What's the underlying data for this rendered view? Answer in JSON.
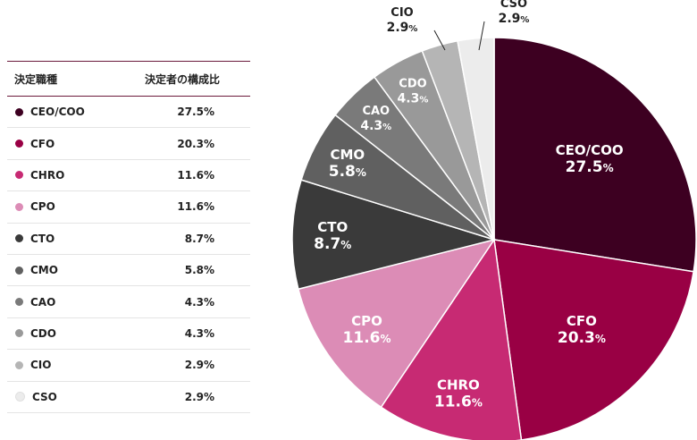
{
  "legend": {
    "header_role": "決定職種",
    "header_share": "決定者の構成比"
  },
  "chart_data": {
    "type": "pie",
    "title": "",
    "unit": "%",
    "slices": [
      {
        "name": "CEO/COO",
        "value": 27.5,
        "color": "#3d0021",
        "label_color": "#ffffff"
      },
      {
        "name": "CFO",
        "value": 20.3,
        "color": "#990044",
        "label_color": "#ffffff"
      },
      {
        "name": "CHRO",
        "value": 11.6,
        "color": "#c72a73",
        "label_color": "#ffffff"
      },
      {
        "name": "CPO",
        "value": 11.6,
        "color": "#dc8cb6",
        "label_color": "#ffffff"
      },
      {
        "name": "CTO",
        "value": 8.7,
        "color": "#3a3a3a",
        "label_color": "#ffffff"
      },
      {
        "name": "CMO",
        "value": 5.8,
        "color": "#606060",
        "label_color": "#ffffff"
      },
      {
        "name": "CAO",
        "value": 4.3,
        "color": "#7a7a7a",
        "label_color": "#ffffff"
      },
      {
        "name": "CDO",
        "value": 4.3,
        "color": "#999999",
        "label_color": "#ffffff"
      },
      {
        "name": "CIO",
        "value": 2.9,
        "color": "#b5b5b5",
        "label_color": "#222222"
      },
      {
        "name": "CSO",
        "value": 2.9,
        "color": "#ececec",
        "label_color": "#222222"
      }
    ]
  }
}
